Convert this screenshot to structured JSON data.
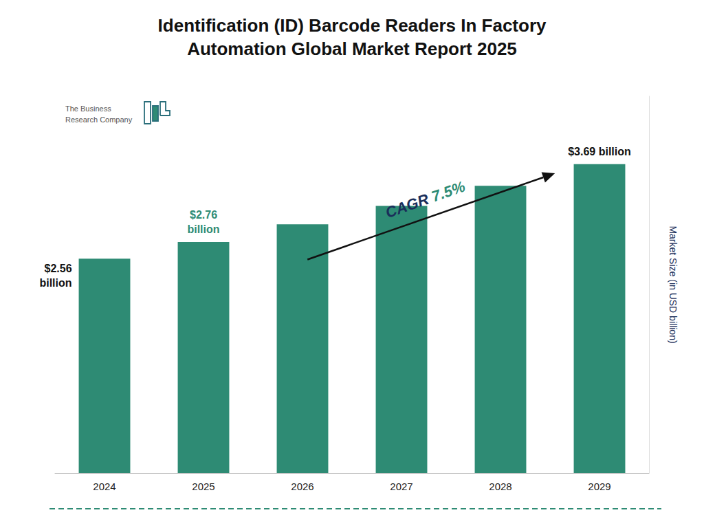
{
  "chart_data": {
    "type": "bar",
    "title": "Identification (ID) Barcode Readers In Factory\nAutomation Global Market Report 2025",
    "categories": [
      "2024",
      "2025",
      "2026",
      "2027",
      "2028",
      "2029"
    ],
    "values": [
      2.56,
      2.76,
      2.97,
      3.19,
      3.43,
      3.69
    ],
    "value_labels": [
      "$2.56\nbillion",
      "$2.76\nbillion",
      null,
      null,
      null,
      "$3.69 billion"
    ],
    "color": "#2e8b74",
    "ylabel": "Market Size (in USD billion)",
    "ylim": [
      0,
      4.5
    ],
    "yticks": [],
    "tick_labels": "x",
    "grid": false,
    "annotations": [
      {
        "text": "CAGR ",
        "color": "#1a2e5a"
      },
      {
        "text": "7.5%",
        "color": "#2e8b74"
      },
      {
        "text": "The Business\nResearch Company",
        "color": "#555555"
      }
    ]
  }
}
